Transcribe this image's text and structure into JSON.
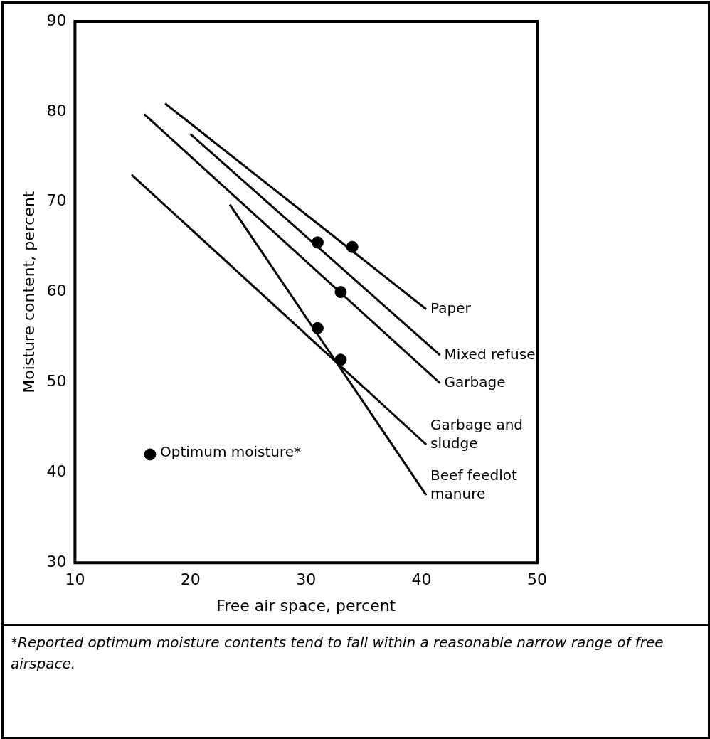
{
  "chart_data": {
    "type": "scatter",
    "xlabel": "Free air space, percent",
    "ylabel": "Moisture content, percent",
    "xlim": [
      10,
      50
    ],
    "xticks": [
      10,
      20,
      30,
      40,
      50
    ],
    "ylim": [
      30,
      90
    ],
    "yticks": [
      30,
      40,
      50,
      60,
      70,
      80,
      90
    ],
    "grid": false,
    "legend": false,
    "series": [
      {
        "name": "Paper",
        "type": "line",
        "marker": "none",
        "color": "#000000",
        "x": [
          17.8,
          40.4
        ],
        "values": [
          80.9,
          58.1
        ]
      },
      {
        "name": "Mixed refuse",
        "type": "line",
        "marker": "none",
        "color": "#000000",
        "x": [
          20,
          41.6
        ],
        "values": [
          77.5,
          53
        ]
      },
      {
        "name": "Garbage",
        "type": "line",
        "marker": "none",
        "color": "#000000",
        "x": [
          16,
          41.6
        ],
        "values": [
          79.7,
          49.9
        ]
      },
      {
        "name": "Garbage and sludge",
        "type": "line",
        "marker": "none",
        "color": "#000000",
        "x": [
          14.9,
          40.4
        ],
        "values": [
          73,
          43.1
        ]
      },
      {
        "name": "Beef feedlot manure",
        "type": "line",
        "marker": "none",
        "color": "#000000",
        "x": [
          23.4,
          40.4
        ],
        "values": [
          69.7,
          37.5
        ]
      },
      {
        "type": "scatter",
        "marker": "circle",
        "color": "#000000",
        "x": [
          31,
          34,
          33,
          31,
          33
        ],
        "values": [
          65.5,
          65,
          60,
          56,
          52.5
        ]
      },
      {
        "name": "Optimum moisture*",
        "type": "scatter",
        "marker": "circle",
        "color": "#000000",
        "x": [
          16.5
        ],
        "values": [
          42
        ]
      }
    ],
    "annotations": [
      "*Reported optimum moisture contents tend to fall within a reasonable narrow range of free airspace."
    ]
  }
}
